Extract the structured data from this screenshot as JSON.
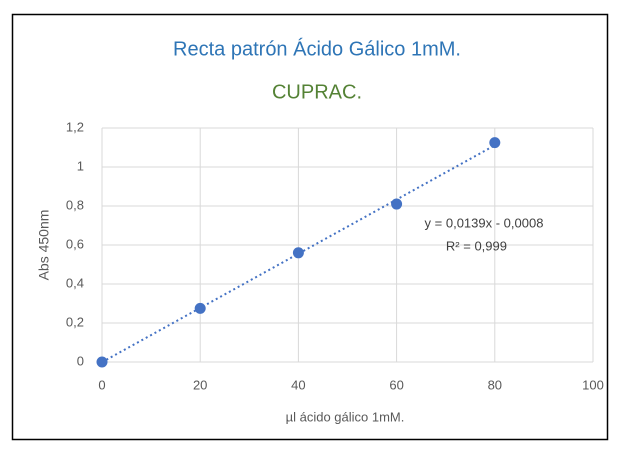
{
  "chart_data": {
    "type": "scatter",
    "title": "Recta patrón Ácido Gálico 1mM.",
    "subtitle": "CUPRAC.",
    "x_label": "µl ácido gálico 1mM.",
    "y_label": "Abs 450nm",
    "x": [
      0,
      20,
      40,
      60,
      80
    ],
    "series": [
      {
        "name": "Abs 450nm",
        "color": "#4472c4",
        "values": [
          0,
          0.275,
          0.56,
          0.81,
          1.125
        ]
      }
    ],
    "trendline": {
      "slope": 0.0139,
      "intercept": -0.0008,
      "label": "y = 0,0139x - 0,0008"
    },
    "annotations": [
      "R² = 0,999"
    ],
    "xlim": [
      0,
      100
    ],
    "xticks": [
      0,
      20,
      40,
      60,
      80,
      100
    ],
    "ylim": [
      0,
      1.2
    ],
    "yticks": [
      0,
      {
        "value": 0.2,
        "label": "0,2"
      },
      {
        "value": 0.4,
        "label": "0,4"
      },
      {
        "value": 0.6,
        "label": "0,6"
      },
      {
        "value": 0.8,
        "label": "0,8"
      },
      1,
      {
        "value": 1.2,
        "label": "1,2"
      }
    ],
    "grid": true
  }
}
